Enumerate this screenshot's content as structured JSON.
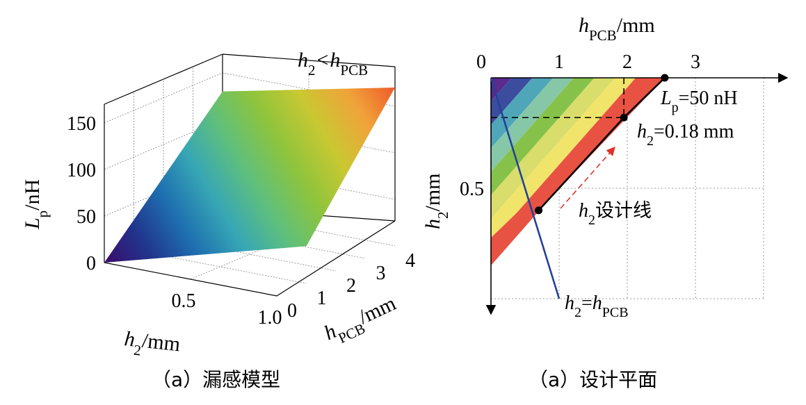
{
  "chart_data": [
    {
      "type": "surface3d",
      "caption": "（a）漏感模型",
      "annotation": {
        "prefix": "h",
        "sub": "2",
        "op": "<",
        "prefix2": "h",
        "sub2": "PCB"
      },
      "x_axis": {
        "var": "h",
        "sub": "2",
        "unit": "/mm",
        "ticks": [
          "0.5",
          "1.0"
        ],
        "range": [
          0,
          1.0
        ]
      },
      "y_axis": {
        "var": "h",
        "sub": "PCB",
        "unit": "/mm",
        "ticks": [
          "0",
          "1",
          "2",
          "3",
          "4"
        ],
        "range": [
          0,
          4
        ]
      },
      "z_axis": {
        "var": "L",
        "sub": "p",
        "unit": "/nH",
        "ticks": [
          "0",
          "50",
          "100",
          "150"
        ],
        "range": [
          0,
          170
        ]
      },
      "surface_corners": [
        {
          "h2": 0,
          "hPCB": 0,
          "Lp": 0
        },
        {
          "h2": 1.0,
          "hPCB": 1.0,
          "Lp": 40
        },
        {
          "h2": 0,
          "hPCB": 4,
          "Lp": 130
        },
        {
          "h2": 1.0,
          "hPCB": 4,
          "Lp": 170
        }
      ],
      "colormap": [
        "#3a0d6b",
        "#21348c",
        "#1e6fb0",
        "#37a7b5",
        "#60c07a",
        "#8ec43c",
        "#c9c832",
        "#f0a33a",
        "#ee5a2a"
      ]
    },
    {
      "type": "contour",
      "caption": "（a）设计平面",
      "x_axis": {
        "var": "h",
        "sub": "PCB",
        "unit": "/mm",
        "ticks": [
          "0",
          "1",
          "2",
          "3"
        ],
        "range": [
          0,
          3.5
        ]
      },
      "y_axis": {
        "var": "h",
        "sub": "2",
        "unit": "/mm",
        "ticks": [
          "0.5"
        ],
        "range": [
          0,
          1.0
        ],
        "inverted": true
      },
      "bands": [
        "#5a2a8c",
        "#3c4d9e",
        "#4fa6b8",
        "#86c7a8",
        "#86c24a",
        "#d8dd6c",
        "#f0e46a",
        "#e85243"
      ],
      "constant_line": {
        "prefix": "L",
        "sub": "p",
        "label": "=50 nH",
        "points": [
          [
            2.55,
            0
          ],
          [
            1.95,
            0.18
          ],
          [
            0.7,
            0.6
          ]
        ]
      },
      "design_point": {
        "prefix": "h",
        "sub": "2",
        "label": "=0.18 mm",
        "hPCB": 1.95,
        "h2": 0.18
      },
      "design_line_label": {
        "prefix": "h",
        "sub": "2",
        "label": "设计线"
      },
      "diagonal": {
        "prefix": "h",
        "sub": "2",
        "op": "=",
        "prefix2": "h",
        "sub2": "PCB",
        "points": [
          [
            0,
            0
          ],
          [
            1.0,
            1.0
          ]
        ]
      }
    }
  ]
}
